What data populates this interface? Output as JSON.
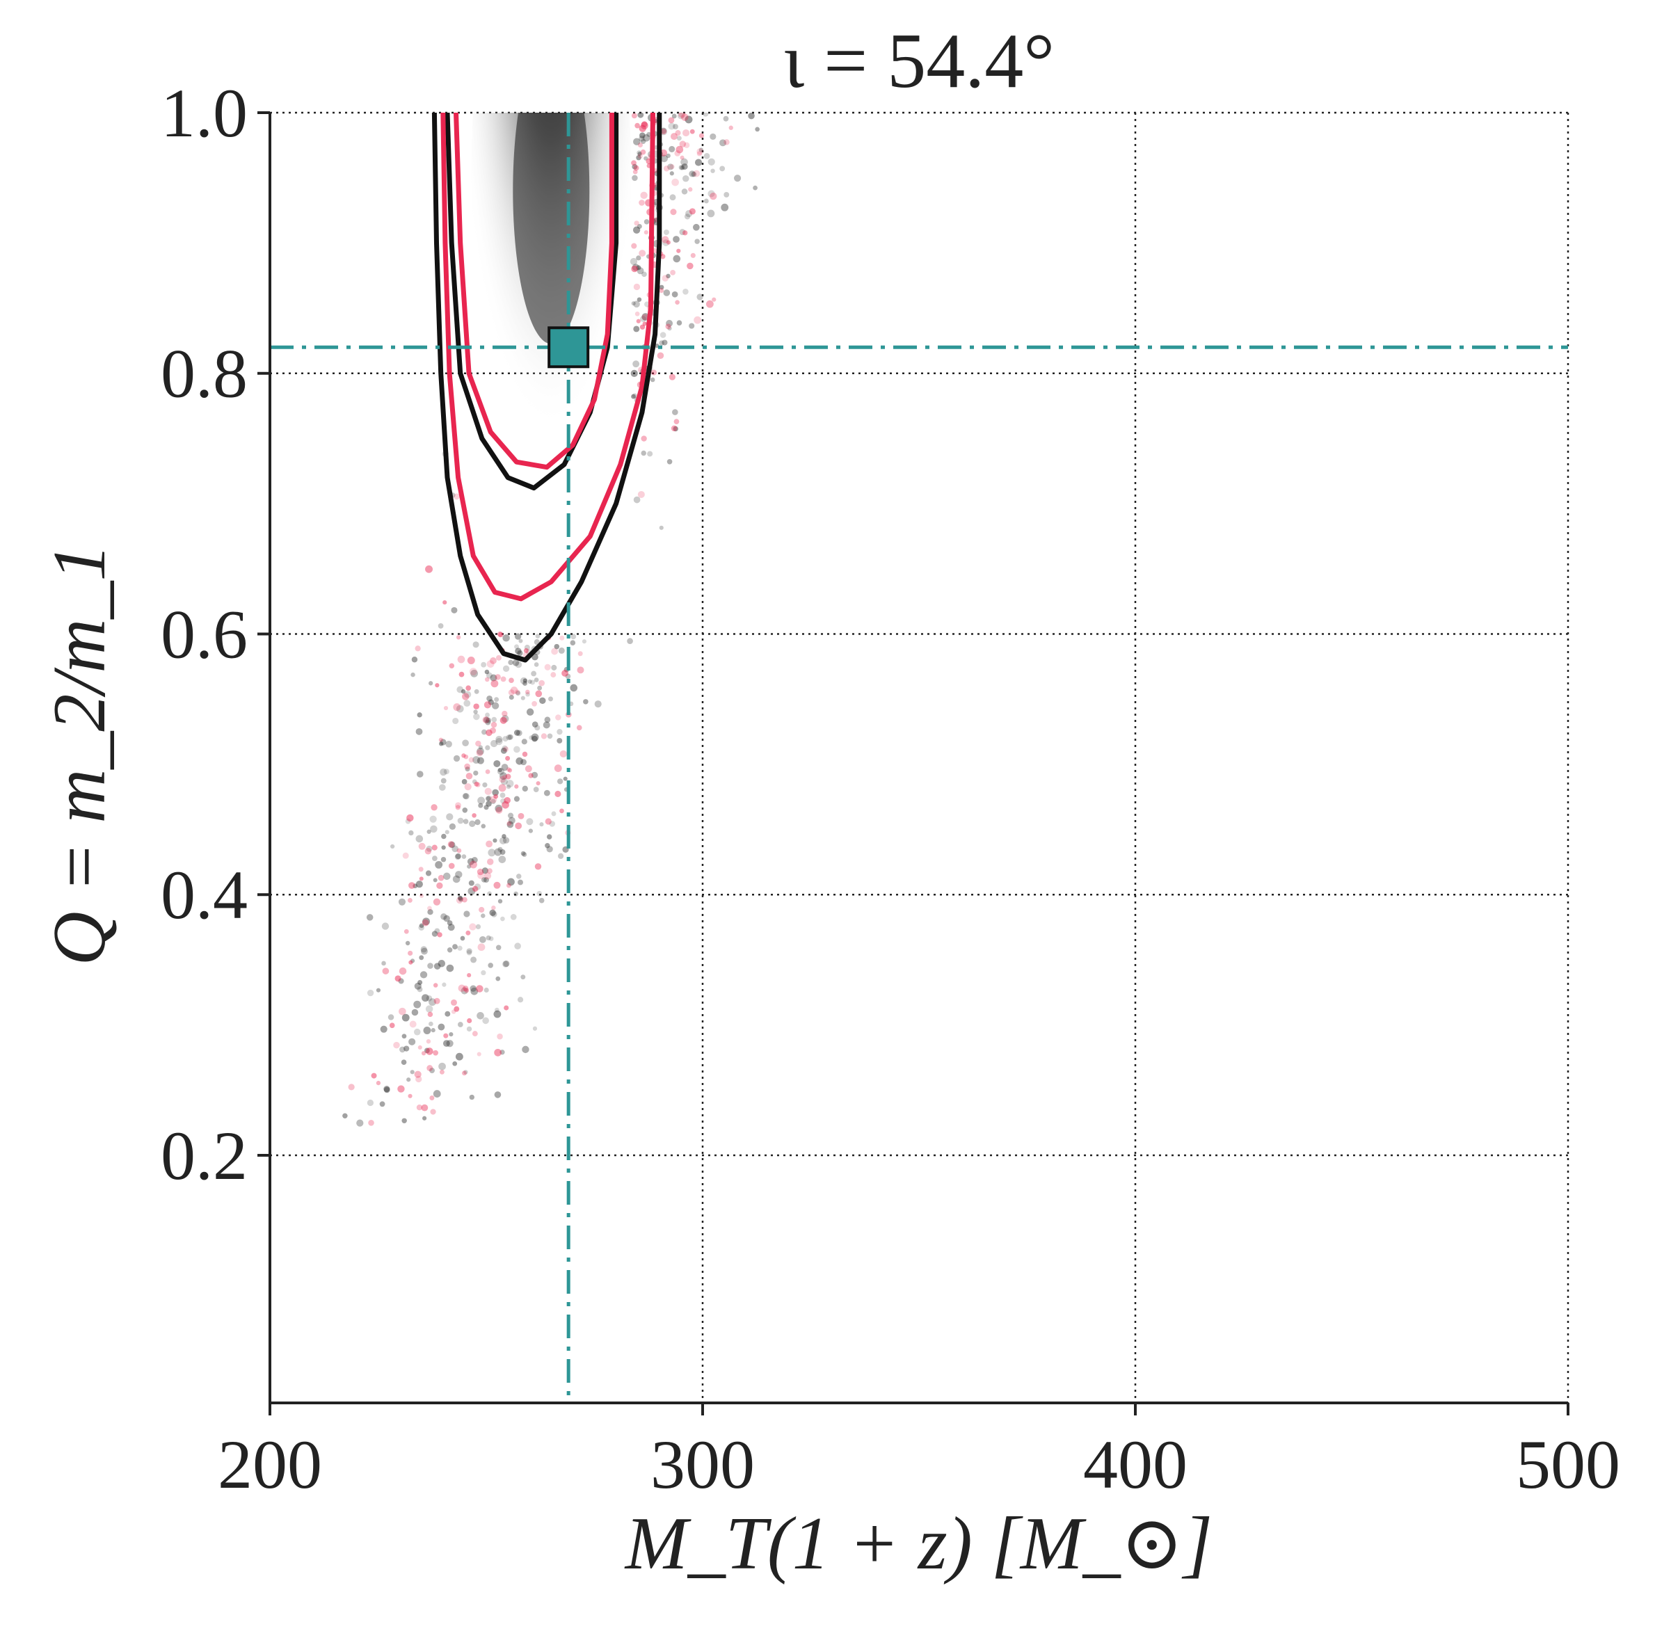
{
  "chart_data": {
    "type": "scatter",
    "title": "ι = 54.4°",
    "xlabel": "M_T(1 + z) [M_⊙]",
    "ylabel": "Q = m_2/m_1",
    "xlim": [
      200,
      500
    ],
    "ylim": [
      0.01,
      1.0
    ],
    "x_ticks": [
      200,
      300,
      400,
      500
    ],
    "x_tick_labels": [
      "200",
      "300",
      "400",
      "500"
    ],
    "y_ticks": [
      0.2,
      0.4,
      0.6,
      0.8,
      1.0
    ],
    "y_tick_labels": [
      "0.2",
      "0.4",
      "0.6",
      "0.8",
      "1.0"
    ],
    "grid": true,
    "grid_style": "dotted",
    "injected_value": {
      "x": 269,
      "y": 0.82
    },
    "density_peak": {
      "x": 265,
      "y": 0.94
    },
    "contours": [
      {
        "name": "inner",
        "color": "#111111",
        "points": [
          [
            241,
            1.0
          ],
          [
            242,
            0.9
          ],
          [
            244,
            0.8
          ],
          [
            249,
            0.75
          ],
          [
            255,
            0.72
          ],
          [
            261,
            0.712
          ],
          [
            268,
            0.73
          ],
          [
            274,
            0.77
          ],
          [
            278,
            0.82
          ],
          [
            280,
            0.9
          ],
          [
            280,
            1.0
          ]
        ]
      },
      {
        "name": "inner",
        "color": "#e8254f",
        "points": [
          [
            243,
            1.0
          ],
          [
            244,
            0.9
          ],
          [
            246,
            0.8
          ],
          [
            251,
            0.755
          ],
          [
            257,
            0.732
          ],
          [
            264,
            0.728
          ],
          [
            270,
            0.745
          ],
          [
            275,
            0.78
          ],
          [
            278,
            0.83
          ],
          [
            279,
            0.9
          ],
          [
            279,
            1.0
          ]
        ]
      },
      {
        "name": "outer",
        "color": "#e8254f",
        "points": [
          [
            240,
            1.0
          ],
          [
            240.5,
            0.9
          ],
          [
            241.5,
            0.8
          ],
          [
            243.5,
            0.72
          ],
          [
            247,
            0.66
          ],
          [
            252,
            0.632
          ],
          [
            258,
            0.627
          ],
          [
            265,
            0.64
          ],
          [
            274,
            0.675
          ],
          [
            281,
            0.73
          ],
          [
            286,
            0.79
          ],
          [
            288,
            0.85
          ],
          [
            288.5,
            1.0
          ]
        ]
      },
      {
        "name": "outer",
        "color": "#111111",
        "points": [
          [
            238,
            1.0
          ],
          [
            238.5,
            0.9
          ],
          [
            239.5,
            0.8
          ],
          [
            241,
            0.72
          ],
          [
            244,
            0.66
          ],
          [
            248,
            0.615
          ],
          [
            254,
            0.585
          ],
          [
            259,
            0.58
          ],
          [
            265,
            0.6
          ],
          [
            272,
            0.64
          ],
          [
            280,
            0.7
          ],
          [
            286,
            0.77
          ],
          [
            289,
            0.83
          ],
          [
            290,
            0.9
          ],
          [
            290,
            1.0
          ]
        ]
      }
    ],
    "scatter_series": [
      {
        "color": "#333333",
        "description_visible": false
      },
      {
        "color": "#e8254f",
        "description_visible": false
      }
    ],
    "colors": {
      "reference_line": "#2e9696",
      "contour_dark": "#111111",
      "contour_red": "#e8254f",
      "axis": "#222222"
    }
  }
}
